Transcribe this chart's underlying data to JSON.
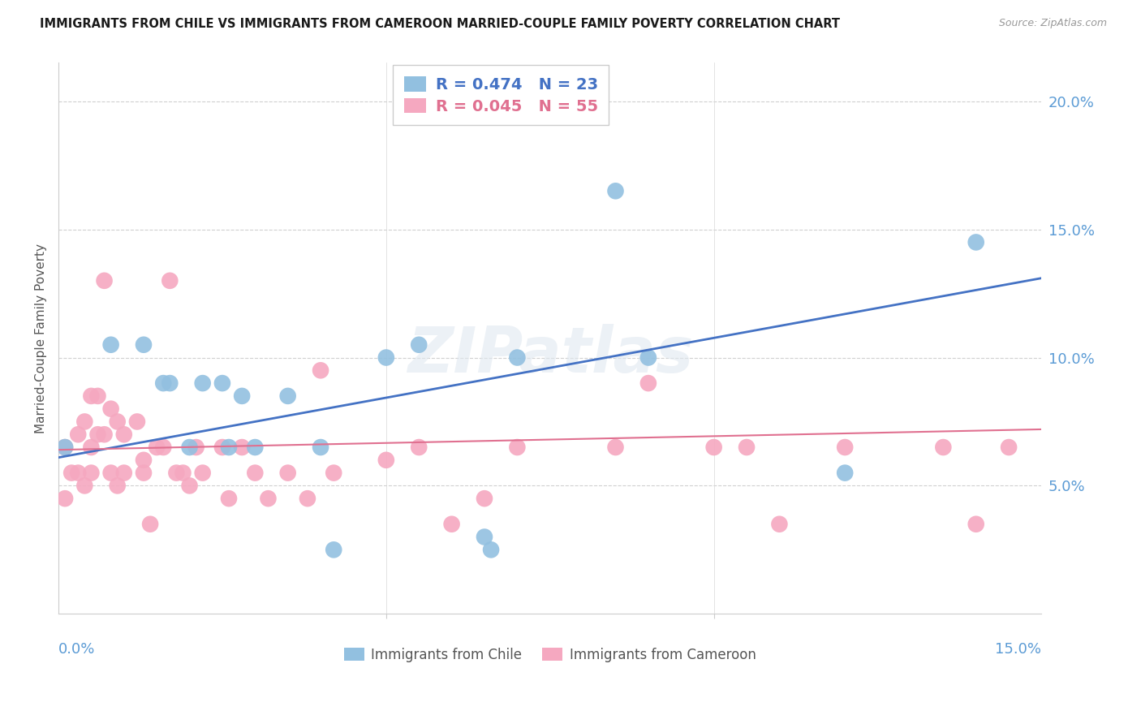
{
  "title": "IMMIGRANTS FROM CHILE VS IMMIGRANTS FROM CAMEROON MARRIED-COUPLE FAMILY POVERTY CORRELATION CHART",
  "source": "Source: ZipAtlas.com",
  "ylabel": "Married-Couple Family Poverty",
  "ytick_labels": [
    "5.0%",
    "10.0%",
    "15.0%",
    "20.0%"
  ],
  "ytick_values": [
    0.05,
    0.1,
    0.15,
    0.2
  ],
  "xlim": [
    0.0,
    0.15
  ],
  "ylim": [
    0.0,
    0.215
  ],
  "legend1_label": "Immigrants from Chile",
  "legend2_label": "Immigrants from Cameroon",
  "R_chile": 0.474,
  "N_chile": 23,
  "R_cameroon": 0.045,
  "N_cameroon": 55,
  "color_chile": "#92C0E0",
  "color_cameroon": "#F5A8C0",
  "color_chile_line": "#4472C4",
  "color_cameroon_line": "#E07090",
  "color_axis_text": "#5B9BD5",
  "watermark_text": "ZIPatlas",
  "chile_line_x": [
    0.0,
    0.15
  ],
  "chile_line_y": [
    0.061,
    0.131
  ],
  "cameroon_line_x": [
    0.0,
    0.15
  ],
  "cameroon_line_y": [
    0.064,
    0.072
  ],
  "chile_x": [
    0.001,
    0.008,
    0.013,
    0.016,
    0.017,
    0.02,
    0.022,
    0.025,
    0.026,
    0.028,
    0.03,
    0.035,
    0.04,
    0.042,
    0.05,
    0.055,
    0.065,
    0.066,
    0.07,
    0.085,
    0.09,
    0.12,
    0.14
  ],
  "chile_y": [
    0.065,
    0.105,
    0.105,
    0.09,
    0.09,
    0.065,
    0.09,
    0.09,
    0.065,
    0.085,
    0.065,
    0.085,
    0.065,
    0.025,
    0.1,
    0.105,
    0.03,
    0.025,
    0.1,
    0.165,
    0.1,
    0.055,
    0.145
  ],
  "cameroon_x": [
    0.001,
    0.001,
    0.002,
    0.003,
    0.003,
    0.004,
    0.004,
    0.005,
    0.005,
    0.005,
    0.006,
    0.006,
    0.007,
    0.007,
    0.008,
    0.008,
    0.009,
    0.009,
    0.01,
    0.01,
    0.012,
    0.013,
    0.013,
    0.014,
    0.015,
    0.016,
    0.017,
    0.018,
    0.019,
    0.02,
    0.021,
    0.022,
    0.025,
    0.026,
    0.028,
    0.03,
    0.032,
    0.035,
    0.038,
    0.04,
    0.042,
    0.05,
    0.055,
    0.06,
    0.065,
    0.07,
    0.085,
    0.09,
    0.1,
    0.105,
    0.11,
    0.12,
    0.135,
    0.14,
    0.145
  ],
  "cameroon_y": [
    0.065,
    0.045,
    0.055,
    0.07,
    0.055,
    0.075,
    0.05,
    0.065,
    0.055,
    0.085,
    0.07,
    0.085,
    0.13,
    0.07,
    0.08,
    0.055,
    0.075,
    0.05,
    0.07,
    0.055,
    0.075,
    0.06,
    0.055,
    0.035,
    0.065,
    0.065,
    0.13,
    0.055,
    0.055,
    0.05,
    0.065,
    0.055,
    0.065,
    0.045,
    0.065,
    0.055,
    0.045,
    0.055,
    0.045,
    0.095,
    0.055,
    0.06,
    0.065,
    0.035,
    0.045,
    0.065,
    0.065,
    0.09,
    0.065,
    0.065,
    0.035,
    0.065,
    0.065,
    0.035,
    0.065
  ]
}
